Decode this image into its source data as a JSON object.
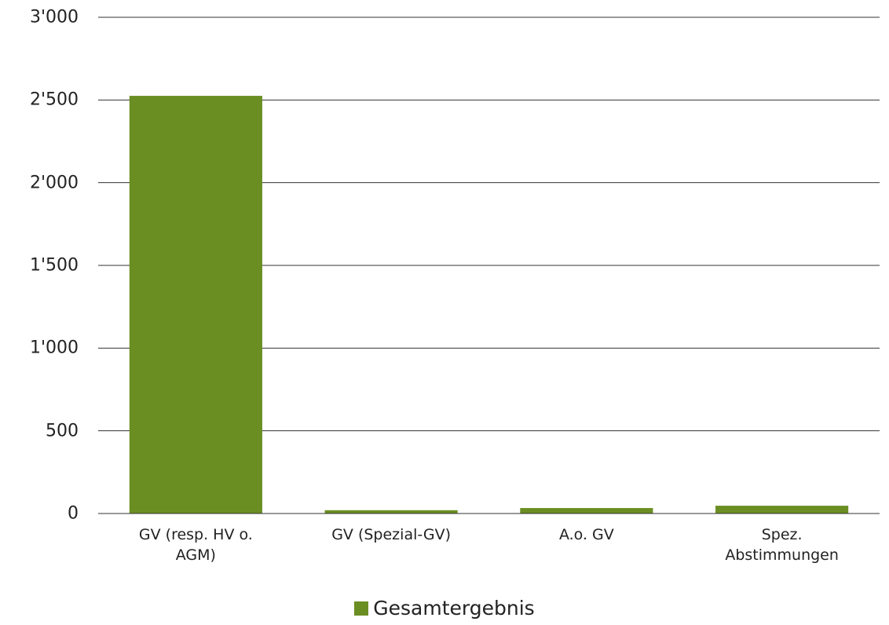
{
  "chart_data": {
    "type": "bar",
    "categories": [
      "GV (resp. HV o. AGM)",
      "GV (Spezial-GV)",
      "A.o. GV",
      "Spez. Abstimmungen"
    ],
    "series": [
      {
        "name": "Gesamtergebnis",
        "color": "#6b8e23",
        "values": [
          2525,
          20,
          33,
          47
        ]
      }
    ],
    "ylim": [
      0,
      3000
    ],
    "yticks": [
      0,
      500,
      {
        "value": 1000,
        "label": "1'000"
      },
      {
        "value": 1500,
        "label": "1'500"
      },
      {
        "value": 2000,
        "label": "2'000"
      },
      {
        "value": 2500,
        "label": "2'500"
      },
      {
        "value": 3000,
        "label": "3'000"
      }
    ],
    "grid": true,
    "legend": "bottom"
  }
}
